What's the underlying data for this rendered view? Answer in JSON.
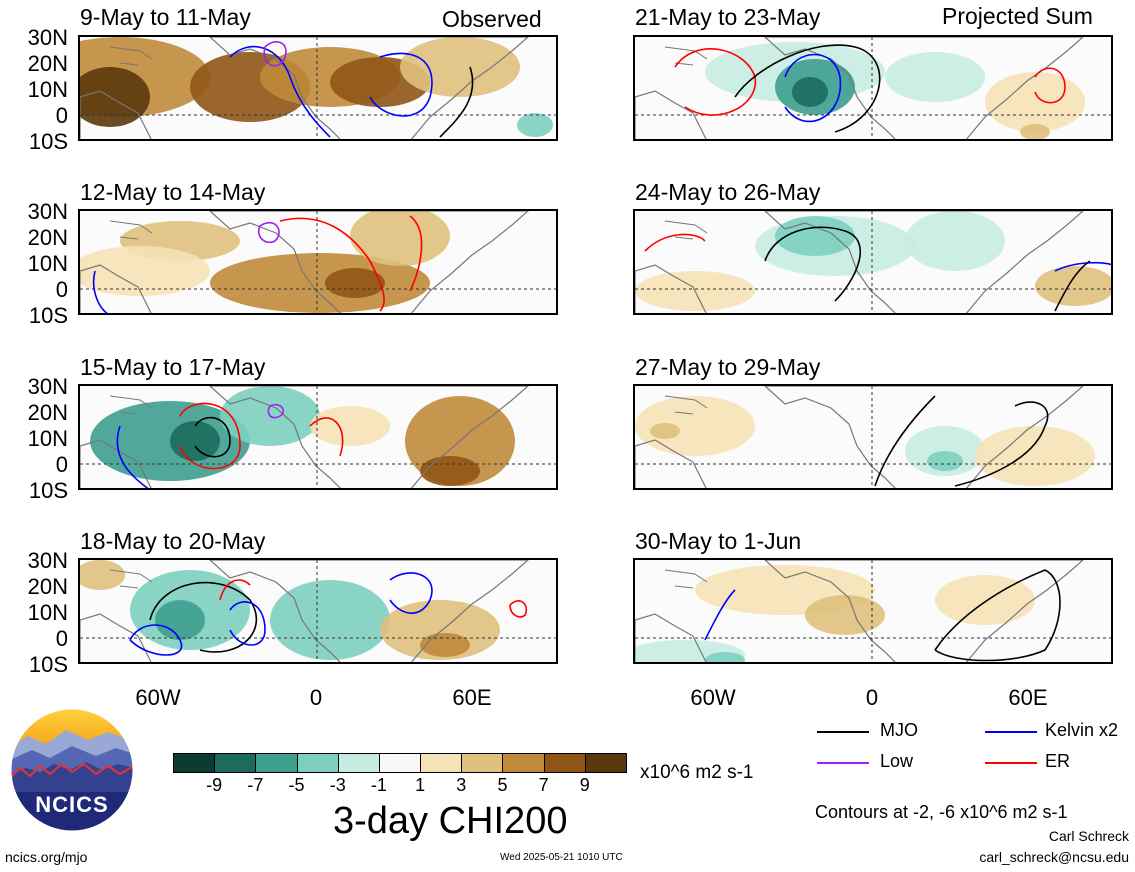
{
  "header": {
    "left_label": "Observed",
    "right_label": "Projected Sum"
  },
  "panels_left": [
    {
      "title": "9-May to 11-May"
    },
    {
      "title": "12-May to 14-May"
    },
    {
      "title": "15-May to 17-May"
    },
    {
      "title": "18-May to 20-May"
    }
  ],
  "panels_right": [
    {
      "title": "21-May to 23-May"
    },
    {
      "title": "24-May to 26-May"
    },
    {
      "title": "27-May to 29-May"
    },
    {
      "title": "30-May to 1-Jun"
    }
  ],
  "lat_labels": [
    "30N",
    "20N",
    "10N",
    "0",
    "10S"
  ],
  "lon_labels": [
    "60W",
    "0",
    "60E"
  ],
  "colorbar": {
    "ticks": [
      "-9",
      "-7",
      "-5",
      "-3",
      "-1",
      "1",
      "3",
      "5",
      "7",
      "9"
    ],
    "colors": [
      "#0c3b33",
      "#1d6b5e",
      "#3e9f8f",
      "#7ccfbf",
      "#c6ece2",
      "#f7f7f7",
      "#f5e2b6",
      "#dfc07d",
      "#c08a3b",
      "#8f5516",
      "#5b370c"
    ],
    "units": "x10^6 m2 s-1",
    "title": "3-day CHI200"
  },
  "legend": {
    "items": [
      {
        "label": "MJO",
        "color": "#000000"
      },
      {
        "label": "Kelvin x2",
        "color": "#0000ff"
      },
      {
        "label": "Low",
        "color": "#a020f0"
      },
      {
        "label": "ER",
        "color": "#ff0000"
      }
    ],
    "contours_note": "Contours at -2, -6 x10^6 m2 s-1"
  },
  "footer": {
    "logo_text": "NCICS",
    "url": "ncics.org/mjo",
    "timestamp": "Wed 2025-05-21 1010 UTC",
    "author": "Carl Schreck",
    "email": "carl_schreck@ncsu.edu"
  }
}
